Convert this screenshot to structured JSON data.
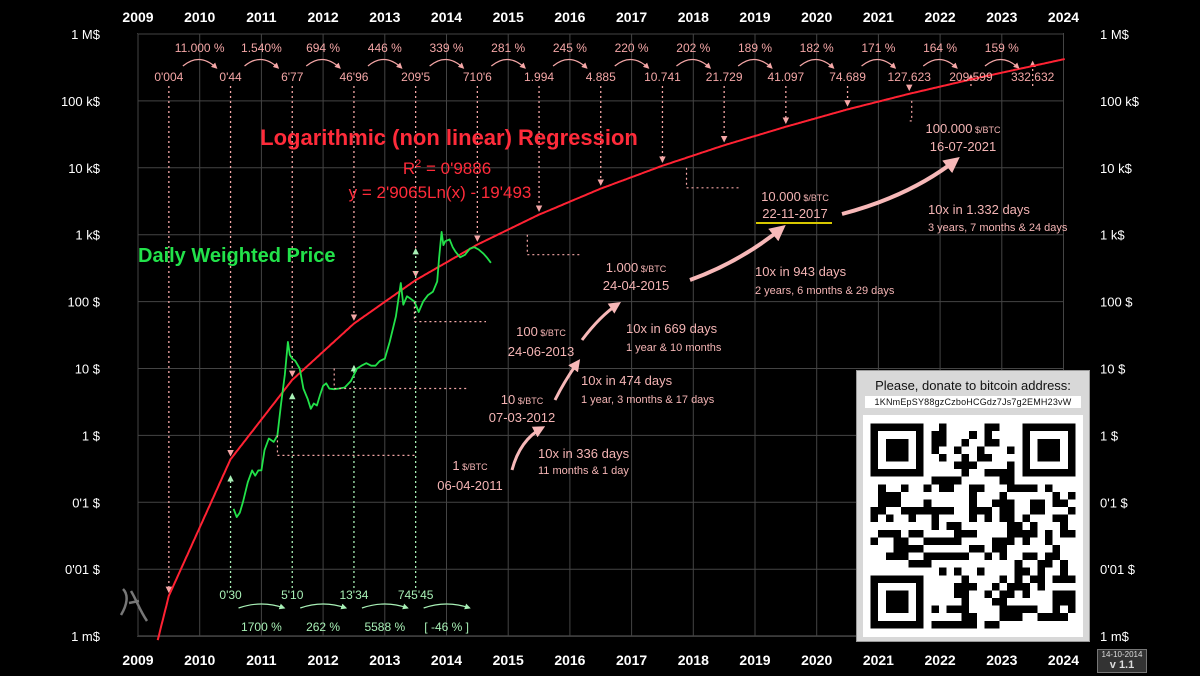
{
  "chart_data": {
    "type": "line",
    "title": "Logarithmic (non linear) Regression",
    "regression": {
      "r2_label": "R",
      "r2_sup": "2",
      "r2_value": " = 0'9886",
      "equation": "y = 2'9065Ln(x) - 19'493",
      "ln_coef": 2.9065,
      "intercept": -19.493
    },
    "series_label": "Daily Weighted Price",
    "x_axis": {
      "years": [
        "2009",
        "2010",
        "2011",
        "2012",
        "2013",
        "2014",
        "2015",
        "2016",
        "2017",
        "2018",
        "2019",
        "2020",
        "2021",
        "2022",
        "2023",
        "2024"
      ]
    },
    "y_axis": {
      "scale": "log",
      "ylim": [
        0.001,
        1000000
      ],
      "ticks": [
        {
          "value": 1000000,
          "label": "1 M$"
        },
        {
          "value": 100000,
          "label": "100 k$"
        },
        {
          "value": 10000,
          "label": "10 k$"
        },
        {
          "value": 1000,
          "label": "1 k$"
        },
        {
          "value": 100,
          "label": "100 $"
        },
        {
          "value": 10,
          "label": "10 $"
        },
        {
          "value": 1,
          "label": "1 $"
        },
        {
          "value": 0.1,
          "label": "0'1 $"
        },
        {
          "value": 0.01,
          "label": "0'01 $"
        },
        {
          "value": 0.001,
          "label": "1 m$"
        }
      ]
    },
    "yearly_regression_values": [
      {
        "year": 2009.5,
        "label": "0'004",
        "value": 0.004
      },
      {
        "year": 2010.5,
        "label": "0'44",
        "value": 0.44
      },
      {
        "year": 2011.5,
        "label": "6'77",
        "value": 6.77
      },
      {
        "year": 2012.5,
        "label": "46'96",
        "value": 46.96
      },
      {
        "year": 2013.5,
        "label": "209'5",
        "value": 209.5
      },
      {
        "year": 2014.5,
        "label": "710'6",
        "value": 710.6
      },
      {
        "year": 2015.5,
        "label": "1.994",
        "value": 1994
      },
      {
        "year": 2016.5,
        "label": "4.885",
        "value": 4885
      },
      {
        "year": 2017.5,
        "label": "10.741",
        "value": 10741
      },
      {
        "year": 2018.5,
        "label": "21.729",
        "value": 21729
      },
      {
        "year": 2019.5,
        "label": "41.097",
        "value": 41097
      },
      {
        "year": 2020.5,
        "label": "74.689",
        "value": 74689
      },
      {
        "year": 2021.5,
        "label": "127.623",
        "value": 127623
      },
      {
        "year": 2022.5,
        "label": "209.599",
        "value": 209599
      },
      {
        "year": 2023.5,
        "label": "332.632",
        "value": 332632
      }
    ],
    "yearly_growth": [
      "11.000 %",
      "1.540%",
      "694 %",
      "446 %",
      "339 %",
      "281 %",
      "245 %",
      "220 %",
      "202 %",
      "189 %",
      "182 %",
      "171 %",
      "164 %",
      "159 %"
    ],
    "actual_price_marks": [
      {
        "year": 2010.5,
        "label": "0'30",
        "value": 0.3
      },
      {
        "year": 2011.5,
        "label": "5'10",
        "value": 5.1
      },
      {
        "year": 2012.5,
        "label": "13'34",
        "value": 13.34
      },
      {
        "year": 2013.5,
        "label": "745'45",
        "value": 745.45
      }
    ],
    "actual_growth": [
      "1700 %",
      "262 %",
      "5588 %",
      "[ -46 % ]"
    ],
    "milestones": [
      {
        "price": "1",
        "unit": " $/BTC",
        "date": "06-04-2011",
        "year": 2011.26,
        "value": 1
      },
      {
        "price": "10",
        "unit": " $/BTC",
        "date": "07-03-2012",
        "year": 2012.18,
        "value": 10
      },
      {
        "price": "100",
        "unit": " $/BTC",
        "date": "24-06-2013",
        "year": 2013.48,
        "value": 100
      },
      {
        "price": "1.000",
        "unit": " $/BTC",
        "date": "24-04-2015",
        "year": 2015.31,
        "value": 1000
      },
      {
        "price": "10.000",
        "unit": " $/BTC",
        "date": "22-11-2017",
        "year": 2017.89,
        "value": 10000
      },
      {
        "price": "100.000",
        "unit": " $/BTC",
        "date": "16-07-2021",
        "year": 2021.54,
        "value": 100000
      }
    ],
    "tenx_intervals": [
      {
        "main": "10x in 336 days",
        "sub": "11 months & 1 day"
      },
      {
        "main": "10x in 474 days",
        "sub": "1 year, 3 months & 17 days"
      },
      {
        "main": "10x in 669 days",
        "sub": "1 year & 10 months"
      },
      {
        "main": "10x in 943 days",
        "sub": "2 years, 6 months & 29 days"
      },
      {
        "main": "10x  in 1.332 days",
        "sub": "3 years, 7 months & 24 days"
      }
    ],
    "price_history": [
      [
        2010.55,
        0.08
      ],
      [
        2010.6,
        0.06
      ],
      [
        2010.65,
        0.07
      ],
      [
        2010.7,
        0.1
      ],
      [
        2010.78,
        0.2
      ],
      [
        2010.85,
        0.3
      ],
      [
        2010.9,
        0.25
      ],
      [
        2010.95,
        0.3
      ],
      [
        2011.0,
        0.3
      ],
      [
        2011.05,
        0.6
      ],
      [
        2011.12,
        0.9
      ],
      [
        2011.2,
        0.8
      ],
      [
        2011.26,
        1.0
      ],
      [
        2011.32,
        3
      ],
      [
        2011.38,
        8
      ],
      [
        2011.43,
        25
      ],
      [
        2011.46,
        16
      ],
      [
        2011.5,
        14
      ],
      [
        2011.55,
        13
      ],
      [
        2011.62,
        10
      ],
      [
        2011.68,
        5
      ],
      [
        2011.75,
        3.5
      ],
      [
        2011.8,
        2.5
      ],
      [
        2011.85,
        3
      ],
      [
        2011.9,
        2.8
      ],
      [
        2011.95,
        4
      ],
      [
        2012.0,
        5.5
      ],
      [
        2012.05,
        6
      ],
      [
        2012.1,
        5
      ],
      [
        2012.18,
        4.9
      ],
      [
        2012.25,
        5
      ],
      [
        2012.35,
        5.2
      ],
      [
        2012.45,
        6.5
      ],
      [
        2012.55,
        10
      ],
      [
        2012.62,
        11
      ],
      [
        2012.7,
        12
      ],
      [
        2012.78,
        11
      ],
      [
        2012.85,
        11
      ],
      [
        2012.92,
        13
      ],
      [
        2013.0,
        14
      ],
      [
        2013.08,
        25
      ],
      [
        2013.18,
        60
      ],
      [
        2013.26,
        190
      ],
      [
        2013.3,
        90
      ],
      [
        2013.36,
        120
      ],
      [
        2013.42,
        110
      ],
      [
        2013.48,
        100
      ],
      [
        2013.55,
        70
      ],
      [
        2013.62,
        100
      ],
      [
        2013.7,
        125
      ],
      [
        2013.78,
        140
      ],
      [
        2013.85,
        200
      ],
      [
        2013.88,
        450
      ],
      [
        2013.92,
        1100
      ],
      [
        2013.95,
        700
      ],
      [
        2013.98,
        800
      ],
      [
        2014.05,
        850
      ],
      [
        2014.1,
        650
      ],
      [
        2014.15,
        550
      ],
      [
        2014.22,
        460
      ],
      [
        2014.3,
        500
      ],
      [
        2014.38,
        620
      ],
      [
        2014.45,
        650
      ],
      [
        2014.52,
        600
      ],
      [
        2014.6,
        520
      ],
      [
        2014.66,
        450
      ],
      [
        2014.72,
        380
      ]
    ]
  },
  "donate": {
    "title": "Please, donate to bitcoin address:",
    "address": "1KNmEpSY88gzCzboHCGdz7Js7g2EMH23vW"
  },
  "version": {
    "date": "14-10-2014",
    "label": "v 1.1"
  }
}
